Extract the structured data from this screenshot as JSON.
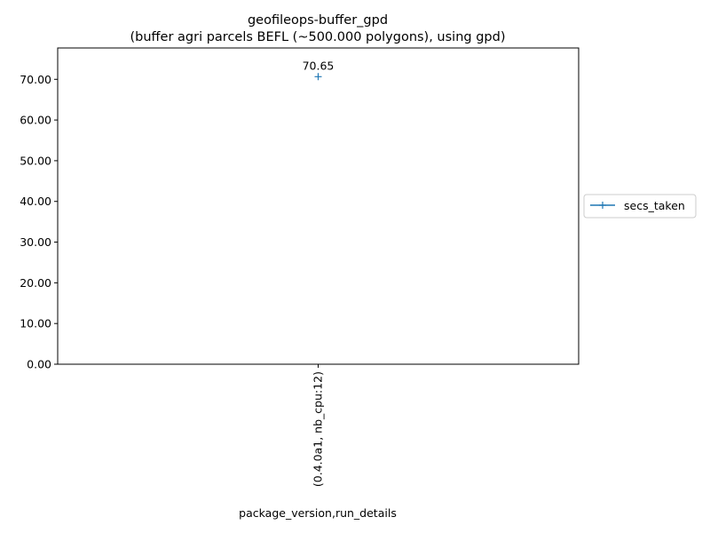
{
  "chart_data": {
    "type": "line",
    "title": "geofileops-buffer_gpd",
    "subtitle": "(buffer agri parcels BEFL (~500.000 polygons), using gpd)",
    "xlabel": "package_version,run_details",
    "ylabel": "",
    "categories": [
      "(0.4.0a1, nb_cpu:12)"
    ],
    "series": [
      {
        "name": "secs_taken",
        "values": [
          70.65
        ],
        "color": "#1f77b4",
        "marker": "plus"
      }
    ],
    "data_labels": [
      "70.65"
    ],
    "yticks": [
      "0.00",
      "10.00",
      "20.00",
      "30.00",
      "40.00",
      "50.00",
      "60.00",
      "70.00"
    ],
    "ylim": [
      0,
      77.7
    ],
    "grid": false,
    "legend_placement": "right-outside-center"
  }
}
